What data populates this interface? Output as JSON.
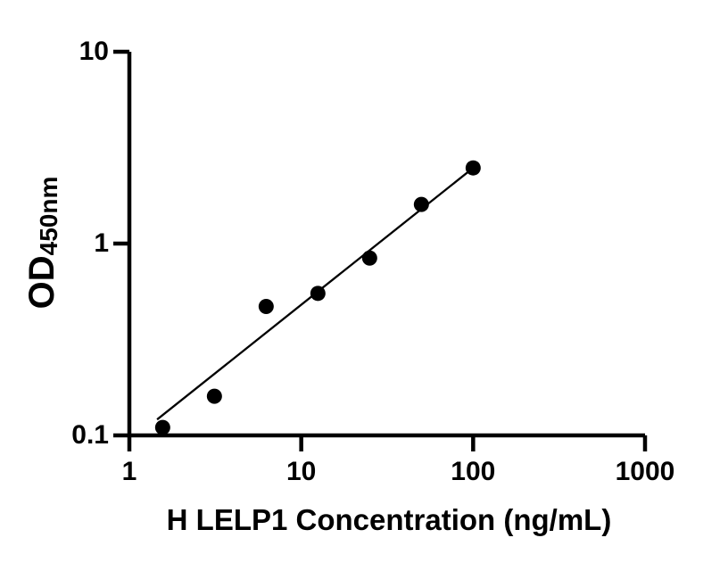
{
  "page": {
    "background_color": "#ffffff",
    "text_color": "#000000"
  },
  "chart_data": {
    "type": "scatter",
    "title": "",
    "xlabel": "H LELP1 Concentration (ng/mL)",
    "ylabel_main": "OD",
    "ylabel_subscript": "450nm",
    "x_scale": "log10",
    "y_scale": "log10",
    "xlim": [
      1,
      1000
    ],
    "ylim": [
      0.1,
      10
    ],
    "grid": false,
    "legend_visible": false,
    "tick_direction": "out",
    "axis_color": "#000000",
    "x_ticks": [
      {
        "value": 1,
        "label": "1"
      },
      {
        "value": 10,
        "label": "10"
      },
      {
        "value": 100,
        "label": "100"
      },
      {
        "value": 1000,
        "label": "1000"
      }
    ],
    "y_ticks": [
      {
        "value": 0.1,
        "label": "0.1"
      },
      {
        "value": 1,
        "label": "1"
      },
      {
        "value": 10,
        "label": "10"
      }
    ],
    "series": [
      {
        "name": "standard-curve-points",
        "marker": "filled-circle",
        "color": "#000000",
        "points": [
          {
            "x": 1.5625,
            "y": 0.11
          },
          {
            "x": 3.125,
            "y": 0.16
          },
          {
            "x": 6.25,
            "y": 0.47
          },
          {
            "x": 12.5,
            "y": 0.55
          },
          {
            "x": 25,
            "y": 0.84
          },
          {
            "x": 50,
            "y": 1.6
          },
          {
            "x": 100,
            "y": 2.48
          }
        ]
      }
    ],
    "trendline": {
      "description": "power-law fit segment",
      "color": "#000000",
      "x1": 1.45,
      "y1": 0.121,
      "x2": 100,
      "y2": 2.48
    }
  }
}
